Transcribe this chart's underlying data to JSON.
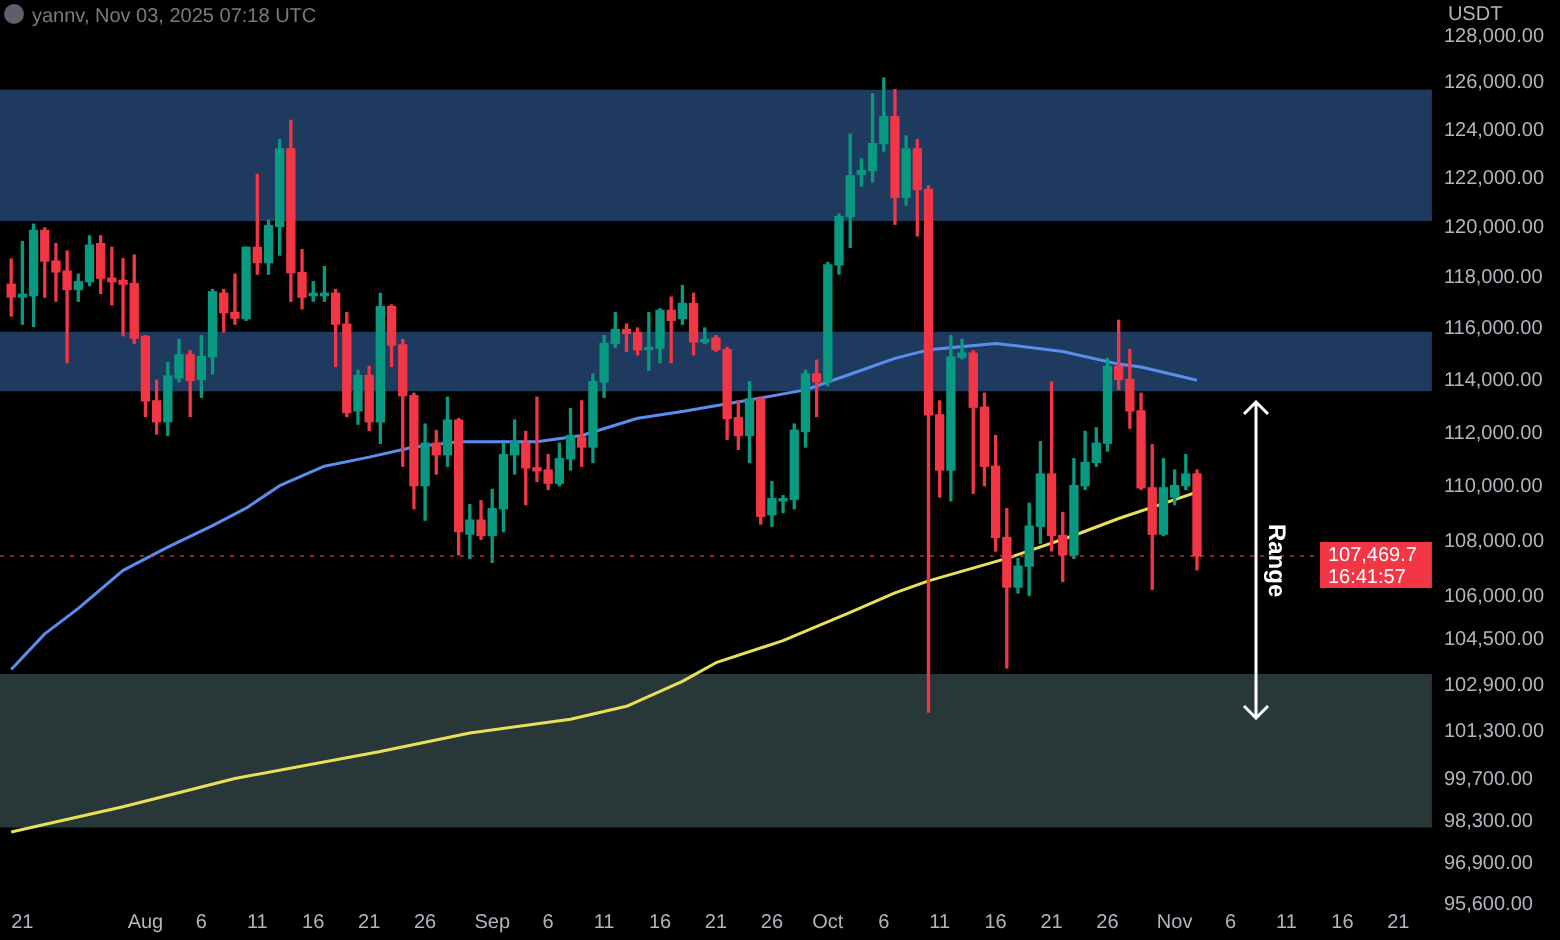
{
  "chart_data": {
    "type": "candlestick",
    "title": "yannv, Nov 03, 2025 07:18 UTC",
    "ylabel": "USDT",
    "log": true,
    "x": [
      "2025-07-20",
      "2025-07-21",
      "2025-07-22",
      "2025-07-23",
      "2025-07-24",
      "2025-07-25",
      "2025-07-26",
      "2025-07-27",
      "2025-07-28",
      "2025-07-29",
      "2025-07-30",
      "2025-07-31",
      "2025-08-01",
      "2025-08-02",
      "2025-08-03",
      "2025-08-04",
      "2025-08-05",
      "2025-08-06",
      "2025-08-07",
      "2025-08-08",
      "2025-08-09",
      "2025-08-10",
      "2025-08-11",
      "2025-08-12",
      "2025-08-13",
      "2025-08-14",
      "2025-08-15",
      "2025-08-16",
      "2025-08-17",
      "2025-08-18",
      "2025-08-19",
      "2025-08-20",
      "2025-08-21",
      "2025-08-22",
      "2025-08-23",
      "2025-08-24",
      "2025-08-25",
      "2025-08-26",
      "2025-08-27",
      "2025-08-28",
      "2025-08-29",
      "2025-08-30",
      "2025-08-31",
      "2025-09-01",
      "2025-09-02",
      "2025-09-03",
      "2025-09-04",
      "2025-09-05",
      "2025-09-06",
      "2025-09-07",
      "2025-09-08",
      "2025-09-09",
      "2025-09-10",
      "2025-09-11",
      "2025-09-12",
      "2025-09-13",
      "2025-09-14",
      "2025-09-15",
      "2025-09-16",
      "2025-09-17",
      "2025-09-18",
      "2025-09-19",
      "2025-09-20",
      "2025-09-21",
      "2025-09-22",
      "2025-09-23",
      "2025-09-24",
      "2025-09-25",
      "2025-09-26",
      "2025-09-27",
      "2025-09-28",
      "2025-09-29",
      "2025-09-30",
      "2025-10-01",
      "2025-10-02",
      "2025-10-03",
      "2025-10-04",
      "2025-10-05",
      "2025-10-06",
      "2025-10-07",
      "2025-10-08",
      "2025-10-09",
      "2025-10-10",
      "2025-10-11",
      "2025-10-12",
      "2025-10-13",
      "2025-10-14",
      "2025-10-15",
      "2025-10-16",
      "2025-10-17",
      "2025-10-18",
      "2025-10-19",
      "2025-10-20",
      "2025-10-21",
      "2025-10-22",
      "2025-10-23",
      "2025-10-24",
      "2025-10-25",
      "2025-10-26",
      "2025-10-27",
      "2025-10-28",
      "2025-10-29",
      "2025-10-30",
      "2025-10-31",
      "2025-11-01",
      "2025-11-02",
      "2025-11-03"
    ],
    "ohlc": [
      [
        117750,
        118750,
        116500,
        117250
      ],
      [
        117250,
        119450,
        116180,
        117350
      ],
      [
        117300,
        120150,
        116090,
        119900
      ],
      [
        119900,
        120000,
        117240,
        118670
      ],
      [
        118670,
        119370,
        117080,
        118240
      ],
      [
        118270,
        119070,
        114690,
        117540
      ],
      [
        117540,
        118150,
        117080,
        117850
      ],
      [
        117850,
        119680,
        117700,
        119310
      ],
      [
        119370,
        119680,
        117390,
        117990
      ],
      [
        117990,
        119220,
        116940,
        117850
      ],
      [
        117900,
        118760,
        115730,
        117750
      ],
      [
        117780,
        118910,
        115430,
        115640
      ],
      [
        115700,
        115730,
        112630,
        113220
      ],
      [
        113220,
        114010,
        111970,
        112430
      ],
      [
        112430,
        114690,
        111910,
        114170
      ],
      [
        114100,
        115580,
        113950,
        114990
      ],
      [
        114990,
        115140,
        112630,
        114010
      ],
      [
        114040,
        115730,
        113360,
        114920
      ],
      [
        114920,
        117540,
        114250,
        117450
      ],
      [
        117390,
        117540,
        115880,
        116630
      ],
      [
        116630,
        118150,
        116180,
        116420
      ],
      [
        116400,
        119220,
        116330,
        119220
      ],
      [
        119220,
        122180,
        118150,
        118610
      ],
      [
        118610,
        120310,
        118150,
        120090
      ],
      [
        120060,
        123610,
        118910,
        123230
      ],
      [
        123230,
        124420,
        117080,
        118210
      ],
      [
        118210,
        119130,
        116780,
        117240
      ],
      [
        117300,
        117850,
        117080,
        117390
      ],
      [
        117300,
        118450,
        117080,
        117390
      ],
      [
        117390,
        117540,
        114540,
        116180
      ],
      [
        116180,
        116630,
        112630,
        112780
      ],
      [
        112840,
        114390,
        112340,
        114190
      ],
      [
        114190,
        114540,
        112100,
        112430
      ],
      [
        112430,
        117390,
        111620,
        116870
      ],
      [
        116870,
        116930,
        114540,
        115370
      ],
      [
        115370,
        115580,
        110760,
        113420
      ],
      [
        113420,
        113510,
        109190,
        110040
      ],
      [
        110040,
        112340,
        108770,
        111620
      ],
      [
        111620,
        112100,
        110470,
        111190
      ],
      [
        111190,
        113360,
        110760,
        112490
      ],
      [
        112490,
        112550,
        107510,
        108350
      ],
      [
        108260,
        109340,
        107380,
        108770
      ],
      [
        108770,
        109480,
        108070,
        108210
      ],
      [
        108210,
        109900,
        107240,
        109190
      ],
      [
        109190,
        111620,
        108350,
        111190
      ],
      [
        111190,
        112490,
        110470,
        111680
      ],
      [
        111620,
        112060,
        109340,
        110700
      ],
      [
        110700,
        113360,
        110190,
        110590
      ],
      [
        110620,
        111190,
        109900,
        110130
      ],
      [
        110130,
        111620,
        110040,
        111040
      ],
      [
        111040,
        112930,
        110620,
        111910
      ],
      [
        111850,
        113220,
        110760,
        111480
      ],
      [
        111480,
        114250,
        110900,
        113950
      ],
      [
        113950,
        115730,
        113360,
        115430
      ],
      [
        115430,
        116630,
        115280,
        115970
      ],
      [
        115970,
        116180,
        115130,
        115820
      ],
      [
        115850,
        116030,
        114990,
        115190
      ],
      [
        115190,
        116630,
        114390,
        115250
      ],
      [
        115250,
        116780,
        114690,
        116720
      ],
      [
        116720,
        117240,
        114690,
        116330
      ],
      [
        116400,
        117700,
        116180,
        116990
      ],
      [
        116990,
        117390,
        114990,
        115490
      ],
      [
        115490,
        116030,
        115430,
        115580
      ],
      [
        115640,
        115730,
        115130,
        115190
      ],
      [
        115190,
        115280,
        111770,
        112550
      ],
      [
        112580,
        113220,
        111390,
        111910
      ],
      [
        111910,
        113950,
        110900,
        113300
      ],
      [
        113300,
        113360,
        108630,
        108910
      ],
      [
        108970,
        110190,
        108550,
        109560
      ],
      [
        109480,
        109670,
        109050,
        109560
      ],
      [
        109530,
        112340,
        109190,
        112110
      ],
      [
        112060,
        114390,
        111480,
        114250
      ],
      [
        114250,
        114780,
        112630,
        113950
      ],
      [
        113950,
        118610,
        113800,
        118520
      ],
      [
        118520,
        120560,
        118150,
        120460
      ],
      [
        120460,
        123840,
        119220,
        122120
      ],
      [
        122180,
        122820,
        121710,
        122340
      ],
      [
        122340,
        125540,
        121870,
        123450
      ],
      [
        123450,
        126200,
        123140,
        124570
      ],
      [
        124570,
        125710,
        120150,
        121240
      ],
      [
        121240,
        123770,
        120930,
        123230
      ],
      [
        123230,
        123610,
        119680,
        121560
      ],
      [
        121560,
        121710,
        101970,
        112690
      ],
      [
        112690,
        113220,
        109620,
        110620
      ],
      [
        110620,
        115730,
        109480,
        114900
      ],
      [
        114900,
        115580,
        114840,
        115050
      ],
      [
        115050,
        115140,
        109760,
        112980
      ],
      [
        112980,
        113510,
        110040,
        110760
      ],
      [
        110760,
        111910,
        107650,
        108140
      ],
      [
        108140,
        109190,
        103500,
        106350
      ],
      [
        106350,
        107380,
        106140,
        107100
      ],
      [
        107100,
        109390,
        106060,
        108550
      ],
      [
        108550,
        111680,
        107930,
        110470
      ],
      [
        110470,
        113950,
        107650,
        108210
      ],
      [
        108210,
        109050,
        106550,
        107510
      ],
      [
        107510,
        111040,
        107380,
        110040
      ],
      [
        110040,
        112060,
        109900,
        110900
      ],
      [
        110900,
        112200,
        110760,
        111620
      ],
      [
        111620,
        114840,
        111330,
        114540
      ],
      [
        114540,
        116330,
        113660,
        114040
      ],
      [
        114040,
        115190,
        112190,
        112840
      ],
      [
        112840,
        113510,
        109900,
        109960
      ],
      [
        109960,
        111560,
        106270,
        108260
      ],
      [
        108260,
        111040,
        108210,
        109960
      ],
      [
        109620,
        110620,
        109340,
        110040
      ],
      [
        110040,
        111190,
        109900,
        110470
      ],
      [
        110470,
        110620,
        106970,
        107470
      ]
    ],
    "colors": [
      "#f23645",
      "#089981",
      "#089981",
      "#f23645",
      "#f23645",
      "#f23645",
      "#089981",
      "#089981",
      "#f23645",
      "#f23645",
      "#f23645",
      "#f23645",
      "#f23645",
      "#f23645",
      "#089981",
      "#089981",
      "#f23645",
      "#089981",
      "#089981",
      "#f23645",
      "#f23645",
      "#089981",
      "#f23645",
      "#089981",
      "#089981",
      "#f23645",
      "#f23645",
      "#089981",
      "#089981",
      "#f23645",
      "#f23645",
      "#089981",
      "#f23645",
      "#089981",
      "#f23645",
      "#f23645",
      "#f23645",
      "#089981",
      "#f23645",
      "#089981",
      "#f23645",
      "#089981",
      "#f23645",
      "#089981",
      "#089981",
      "#089981",
      "#f23645",
      "#f23645",
      "#f23645",
      "#089981",
      "#089981",
      "#f23645",
      "#089981",
      "#089981",
      "#089981",
      "#f23645",
      "#f23645",
      "#089981",
      "#089981",
      "#f23645",
      "#089981",
      "#f23645",
      "#089981",
      "#f23645",
      "#f23645",
      "#f23645",
      "#089981",
      "#f23645",
      "#089981",
      "#089981",
      "#089981",
      "#089981",
      "#f23645",
      "#089981",
      "#089981",
      "#089981",
      "#089981",
      "#089981",
      "#089981",
      "#f23645",
      "#089981",
      "#f23645",
      "#f23645",
      "#f23645",
      "#089981",
      "#089981",
      "#f23645",
      "#f23645",
      "#f23645",
      "#f23645",
      "#089981",
      "#089981",
      "#089981",
      "#f23645",
      "#f23645",
      "#089981",
      "#089981",
      "#089981",
      "#089981",
      "#f23645",
      "#f23645",
      "#f23645",
      "#f23645",
      "#089981",
      "#089981",
      "#089981",
      "#f23645"
    ],
    "series": [
      {
        "type": "line",
        "color": "#5b8def",
        "x": [
          "2025-07-20",
          "2025-07-23",
          "2025-07-26",
          "2025-07-30",
          "2025-08-03",
          "2025-08-07",
          "2025-08-10",
          "2025-08-13",
          "2025-08-17",
          "2025-08-21",
          "2025-08-25",
          "2025-08-29",
          "2025-09-05",
          "2025-09-09",
          "2025-09-14",
          "2025-09-18",
          "2025-09-25",
          "2025-09-29",
          "2025-10-03",
          "2025-10-07",
          "2025-10-10",
          "2025-10-16",
          "2025-10-22",
          "2025-10-27",
          "2025-10-29",
          "2025-11-03"
        ],
        "values": [
          103440,
          104690,
          105590,
          106950,
          107790,
          108570,
          109210,
          110040,
          110760,
          111100,
          111480,
          111680,
          111680,
          111910,
          112560,
          112820,
          113330,
          113640,
          114240,
          114850,
          115180,
          115430,
          115120,
          114630,
          114520,
          114010
        ]
      },
      {
        "type": "line",
        "color": "#e8e157",
        "x": [
          "2025-07-20",
          "2025-07-30",
          "2025-08-09",
          "2025-08-22",
          "2025-08-30",
          "2025-09-08",
          "2025-09-13",
          "2025-09-18",
          "2025-09-21",
          "2025-09-27",
          "2025-10-03",
          "2025-10-07",
          "2025-10-10",
          "2025-10-17",
          "2025-10-23",
          "2025-10-27",
          "2025-11-03"
        ],
        "values": [
          97940,
          98780,
          99720,
          100630,
          101260,
          101730,
          102170,
          103030,
          103680,
          104450,
          105450,
          106140,
          106570,
          107380,
          108210,
          108830,
          109800
        ]
      }
    ],
    "xlim": [
      "2025-07-19",
      "2025-11-24"
    ],
    "xticks": [
      {
        "value": "2025-07-21",
        "label": "21"
      },
      {
        "value": "2025-08-01",
        "label": "Aug"
      },
      {
        "value": "2025-08-06",
        "label": "6"
      },
      {
        "value": "2025-08-11",
        "label": "11"
      },
      {
        "value": "2025-08-16",
        "label": "16"
      },
      {
        "value": "2025-08-21",
        "label": "21"
      },
      {
        "value": "2025-08-26",
        "label": "26"
      },
      {
        "value": "2025-09-01",
        "label": "Sep"
      },
      {
        "value": "2025-09-06",
        "label": "6"
      },
      {
        "value": "2025-09-11",
        "label": "11"
      },
      {
        "value": "2025-09-16",
        "label": "16"
      },
      {
        "value": "2025-09-21",
        "label": "21"
      },
      {
        "value": "2025-09-26",
        "label": "26"
      },
      {
        "value": "2025-10-01",
        "label": "Oct"
      },
      {
        "value": "2025-10-06",
        "label": "6"
      },
      {
        "value": "2025-10-11",
        "label": "11"
      },
      {
        "value": "2025-10-16",
        "label": "16"
      },
      {
        "value": "2025-10-21",
        "label": "21"
      },
      {
        "value": "2025-10-26",
        "label": "26"
      },
      {
        "value": "2025-11-01",
        "label": "Nov"
      },
      {
        "value": "2025-11-06",
        "label": "6"
      },
      {
        "value": "2025-11-11",
        "label": "11"
      },
      {
        "value": "2025-11-16",
        "label": "16"
      },
      {
        "value": "2025-11-21",
        "label": "21"
      }
    ],
    "ylim": [
      95600,
      128000
    ],
    "yticks": [
      {
        "value": 128000,
        "label": "128,000.00"
      },
      {
        "value": 126000,
        "label": "126,000.00"
      },
      {
        "value": 124000,
        "label": "124,000.00"
      },
      {
        "value": 122000,
        "label": "122,000.00"
      },
      {
        "value": 120000,
        "label": "120,000.00"
      },
      {
        "value": 118000,
        "label": "118,000.00"
      },
      {
        "value": 116000,
        "label": "116,000.00"
      },
      {
        "value": 114000,
        "label": "114,000.00"
      },
      {
        "value": 112000,
        "label": "112,000.00"
      },
      {
        "value": 110000,
        "label": "110,000.00"
      },
      {
        "value": 108000,
        "label": "108,000.00"
      },
      {
        "value": 106000,
        "label": "106,000.00"
      },
      {
        "value": 104500,
        "label": "104,500.00"
      },
      {
        "value": 102900,
        "label": "102,900.00"
      },
      {
        "value": 101300,
        "label": "101,300.00"
      },
      {
        "value": 99700,
        "label": "99,700.00"
      },
      {
        "value": 98300,
        "label": "98,300.00"
      },
      {
        "value": 96900,
        "label": "96,900.00"
      },
      {
        "value": 95600,
        "label": "95,600.00"
      }
    ],
    "bands": [
      {
        "axis": "y",
        "from": 120280,
        "to": 125710,
        "color": "#1f3a5f"
      },
      {
        "axis": "y",
        "from": 113590,
        "to": 115880,
        "color": "#1f3a5f"
      },
      {
        "axis": "y",
        "from": 98090,
        "to": 103290,
        "color": "#283838"
      }
    ],
    "ref_lines": [
      {
        "axis": "y",
        "value": 107469.7,
        "label": "107,469.7",
        "color": "#f23645",
        "line_style": "dotted"
      }
    ],
    "annotations": [
      {
        "text": "Range",
        "x": "2025-11-10",
        "y": 107300
      },
      "16:41:57"
    ]
  }
}
